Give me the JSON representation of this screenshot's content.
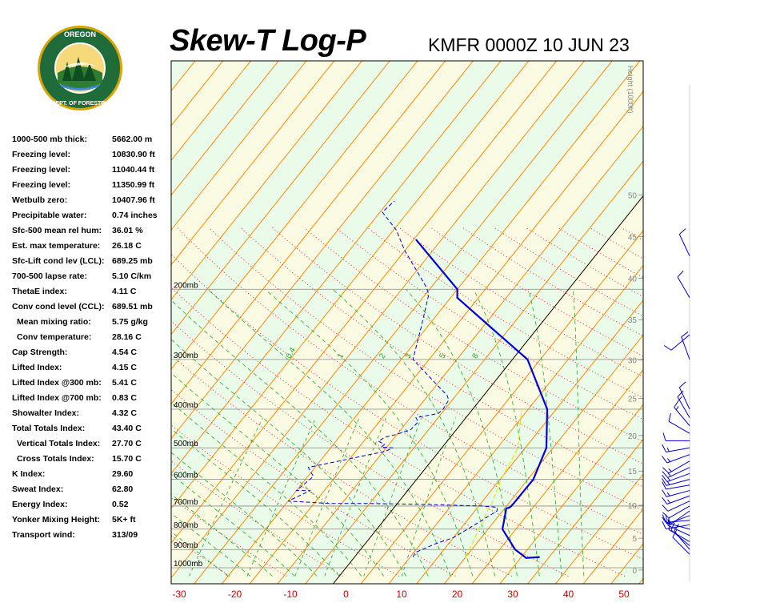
{
  "header": {
    "logo_text": "OREGON DEPARTMENT OF FORESTRY",
    "title": "Skew-T Log-P",
    "station": "KMFR 0000Z 10 JUN 23"
  },
  "indices": [
    {
      "label": "1000-500 mb thick:",
      "value": "5662.00 m",
      "indent": false
    },
    {
      "label": "Freezing level:",
      "value": "10830.90 ft",
      "indent": false
    },
    {
      "label": "Freezing level:",
      "value": "11040.44 ft",
      "indent": false
    },
    {
      "label": "Freezing level:",
      "value": "11350.99 ft",
      "indent": false
    },
    {
      "label": "Wetbulb zero:",
      "value": "10407.96 ft",
      "indent": false
    },
    {
      "label": "Precipitable water:",
      "value": "0.74 inches",
      "indent": false
    },
    {
      "label": "Sfc-500 mean rel hum:",
      "value": "36.01 %",
      "indent": false
    },
    {
      "label": "Est. max temperature:",
      "value": "26.18 C",
      "indent": false
    },
    {
      "label": "Sfc-Lift cond lev (LCL):",
      "value": "689.25 mb",
      "indent": false
    },
    {
      "label": "700-500 lapse rate:",
      "value": "5.10 C/km",
      "indent": false
    },
    {
      "label": "ThetaE index:",
      "value": "4.11 C",
      "indent": false
    },
    {
      "label": "Conv cond level (CCL):",
      "value": "689.51 mb",
      "indent": false
    },
    {
      "label": "Mean mixing ratio:",
      "value": "5.75 g/kg",
      "indent": true
    },
    {
      "label": "Conv temperature:",
      "value": "28.16 C",
      "indent": true
    },
    {
      "label": "Cap Strength:",
      "value": "4.54 C",
      "indent": false
    },
    {
      "label": "Lifted Index:",
      "value": "4.15 C",
      "indent": false
    },
    {
      "label": "Lifted Index @300 mb:",
      "value": "5.41 C",
      "indent": false
    },
    {
      "label": "Lifted Index @700 mb:",
      "value": "0.83 C",
      "indent": false
    },
    {
      "label": "Showalter Index:",
      "value": "4.32 C",
      "indent": false
    },
    {
      "label": "Total Totals Index:",
      "value": "43.40 C",
      "indent": false
    },
    {
      "label": "Vertical Totals Index:",
      "value": "27.70 C",
      "indent": true
    },
    {
      "label": "Cross Totals Index:",
      "value": "15.70 C",
      "indent": true
    },
    {
      "label": "K Index:",
      "value": "29.60",
      "indent": false
    },
    {
      "label": "Sweat Index:",
      "value": "62.80",
      "indent": false
    },
    {
      "label": "Energy Index:",
      "value": "0.52",
      "indent": false
    },
    {
      "label": "Yonker Mixing Height:",
      "value": "5K+ ft",
      "indent": false
    },
    {
      "label": "Transport wind:",
      "value": "313/09",
      "indent": false
    }
  ],
  "chart_data": {
    "type": "line",
    "xlim": [
      -30,
      50
    ],
    "pressure_levels": [
      1000,
      900,
      800,
      700,
      600,
      500,
      400,
      300,
      200
    ],
    "pressure_labels": [
      "1000mb",
      "900mb",
      "800mb",
      "700mb",
      "600mb",
      "500mb",
      "400mb",
      "300mb",
      "200mb"
    ],
    "x_ticks": [
      -30,
      -20,
      -10,
      0,
      10,
      20,
      30,
      40,
      50
    ],
    "x_tick_labels": [
      "-30",
      "-20",
      "-10",
      "0",
      "10",
      "20",
      "30",
      "40",
      "50"
    ],
    "height_axis_label": "Height (1000ft)",
    "height_ticks": [
      0,
      5,
      10,
      15,
      20,
      25,
      30,
      35,
      40,
      45,
      50
    ],
    "mixing_ratio_labels": [
      "0.4",
      "1",
      "2",
      "3",
      "5",
      "8"
    ],
    "temperature": [
      [
        940,
        33.3
      ],
      [
        945,
        31.0
      ],
      [
        900,
        27.8
      ],
      [
        800,
        22.6
      ],
      [
        710,
        20.3
      ],
      [
        705,
        20.8
      ],
      [
        690,
        20.9
      ],
      [
        600,
        21.0
      ],
      [
        500,
        18.8
      ],
      [
        400,
        13.4
      ],
      [
        300,
        2.7
      ],
      [
        250,
        -8.3
      ],
      [
        210,
        -18.8
      ],
      [
        200,
        -20.0
      ],
      [
        150,
        -34.6
      ]
    ],
    "dewpoint": [
      [
        940,
        10.5
      ],
      [
        915,
        10.3
      ],
      [
        870,
        12.7
      ],
      [
        840,
        15.0
      ],
      [
        780,
        17.0
      ],
      [
        720,
        19.0
      ],
      [
        705,
        18.5
      ],
      [
        700,
        15.5
      ],
      [
        695,
        8.0
      ],
      [
        692,
        2.0
      ],
      [
        690,
        -5.0
      ],
      [
        690,
        -12.0
      ],
      [
        680,
        -20.0
      ],
      [
        640,
        -17.5
      ],
      [
        640,
        -20.0
      ],
      [
        590,
        -19.0
      ],
      [
        560,
        -21.2
      ],
      [
        510,
        -9.6
      ],
      [
        500,
        -8.8
      ],
      [
        498,
        -11.0
      ],
      [
        490,
        -10.8
      ],
      [
        481,
        -12.4
      ],
      [
        470,
        -11.7
      ],
      [
        462,
        -10.0
      ],
      [
        450,
        -8.2
      ],
      [
        430,
        -8.0
      ],
      [
        420,
        -9.0
      ],
      [
        410,
        -5.6
      ],
      [
        400,
        -5.3
      ],
      [
        390,
        -5.5
      ],
      [
        380,
        -5.6
      ],
      [
        370,
        -6.5
      ],
      [
        300,
        -17.9
      ],
      [
        250,
        -21.0
      ],
      [
        206,
        -24.4
      ],
      [
        197,
        -26.0
      ],
      [
        160,
        -35.0
      ],
      [
        142,
        -39.5
      ],
      [
        128,
        -44.6
      ],
      [
        120,
        -44.0
      ]
    ],
    "parcel": [
      [
        940,
        20.0
      ],
      [
        700,
        17.0
      ],
      [
        690,
        17.0
      ],
      [
        600,
        15.2
      ],
      [
        500,
        13.7
      ],
      [
        400,
        8.8
      ]
    ],
    "wind_barbs": [
      {
        "p": 925,
        "dir": 315,
        "kt": 9
      },
      {
        "p": 900,
        "dir": 320,
        "kt": 10
      },
      {
        "p": 880,
        "dir": 310,
        "kt": 10
      },
      {
        "p": 860,
        "dir": 300,
        "kt": 12
      },
      {
        "p": 830,
        "dir": 295,
        "kt": 10
      },
      {
        "p": 800,
        "dir": 285,
        "kt": 14
      },
      {
        "p": 780,
        "dir": 260,
        "kt": 12
      },
      {
        "p": 760,
        "dir": 265,
        "kt": 8
      },
      {
        "p": 740,
        "dir": 250,
        "kt": 14
      },
      {
        "p": 720,
        "dir": 235,
        "kt": 12
      },
      {
        "p": 700,
        "dir": 240,
        "kt": 12
      },
      {
        "p": 680,
        "dir": 245,
        "kt": 10
      },
      {
        "p": 660,
        "dir": 250,
        "kt": 16
      },
      {
        "p": 640,
        "dir": 255,
        "kt": 16
      },
      {
        "p": 620,
        "dir": 260,
        "kt": 12
      },
      {
        "p": 600,
        "dir": 255,
        "kt": 14
      },
      {
        "p": 580,
        "dir": 250,
        "kt": 14
      },
      {
        "p": 560,
        "dir": 245,
        "kt": 14
      },
      {
        "p": 540,
        "dir": 240,
        "kt": 14
      },
      {
        "p": 520,
        "dir": 250,
        "kt": 16
      },
      {
        "p": 500,
        "dir": 260,
        "kt": 14
      },
      {
        "p": 480,
        "dir": 270,
        "kt": 12
      },
      {
        "p": 460,
        "dir": 300,
        "kt": 12
      },
      {
        "p": 440,
        "dir": 320,
        "kt": 14
      },
      {
        "p": 420,
        "dir": 330,
        "kt": 14
      },
      {
        "p": 400,
        "dir": 335,
        "kt": 10
      },
      {
        "p": 300,
        "dir": 340,
        "kt": 10
      },
      {
        "p": 260,
        "dir": 230,
        "kt": 8
      },
      {
        "p": 210,
        "dir": 330,
        "kt": 10
      },
      {
        "p": 165,
        "dir": 335,
        "kt": 10
      }
    ]
  },
  "colors": {
    "band_green": "#eafbea",
    "band_yellow": "#fbfbe4",
    "isotherm": "#ff8800",
    "dry_adiabat": "#ee2222",
    "moist_adiabat": "#22aa22",
    "mixing_ratio": "#22aa22",
    "temperature": "#0000dd",
    "dewpoint": "#0000dd",
    "parcel": "#e6e600",
    "wind_barb": "#0000cc",
    "x_tick_label": "#cc0000"
  }
}
